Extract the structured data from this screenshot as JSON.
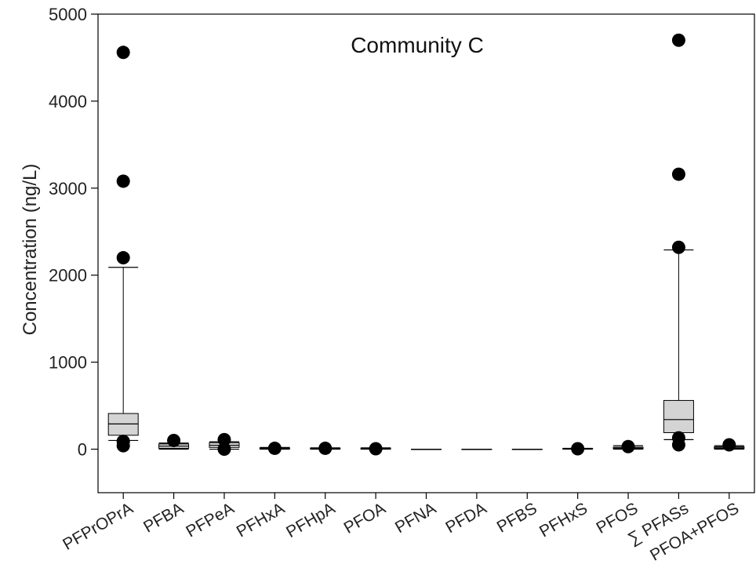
{
  "chart_data": {
    "type": "box",
    "title": "Community C",
    "xlabel": "",
    "ylabel": "Concentration (ng/L)",
    "ylim": [
      -500,
      5000
    ],
    "yticks": [
      0,
      1000,
      2000,
      3000,
      4000,
      5000
    ],
    "grid": false,
    "categories": [
      "PFPrOPrA",
      "PFBA",
      "PFPeA",
      "PFHxA",
      "PFHpA",
      "PFOA",
      "PFNA",
      "PFDA",
      "PFBS",
      "PFHxS",
      "PFOS",
      "∑ PFASs",
      "PFOA+PFOS"
    ],
    "boxes": [
      {
        "whisker_low": 100,
        "q1": 160,
        "median": 290,
        "q3": 410,
        "whisker_high": 2090,
        "outliers": [
          4560,
          3080,
          2200,
          90,
          40
        ]
      },
      {
        "whisker_low": 0,
        "q1": 10,
        "median": 35,
        "q3": 60,
        "whisker_high": 70,
        "outliers": [
          100
        ]
      },
      {
        "whisker_low": 0,
        "q1": 20,
        "median": 45,
        "q3": 75,
        "whisker_high": 85,
        "outliers": [
          110,
          0
        ]
      },
      {
        "whisker_low": 0,
        "q1": 3,
        "median": 8,
        "q3": 15,
        "whisker_high": 20,
        "outliers": [
          10
        ]
      },
      {
        "whisker_low": 0,
        "q1": 3,
        "median": 7,
        "q3": 12,
        "whisker_high": 15,
        "outliers": [
          10
        ]
      },
      {
        "whisker_low": 0,
        "q1": 3,
        "median": 6,
        "q3": 12,
        "whisker_high": 15,
        "outliers": [
          5
        ]
      },
      {
        "whisker_low": 0,
        "q1": 0,
        "median": 0,
        "q3": 0,
        "whisker_high": 0,
        "outliers": []
      },
      {
        "whisker_low": 0,
        "q1": 0,
        "median": 0,
        "q3": 0,
        "whisker_high": 0,
        "outliers": []
      },
      {
        "whisker_low": 0,
        "q1": 0,
        "median": 0,
        "q3": 0,
        "whisker_high": 0,
        "outliers": []
      },
      {
        "whisker_low": 0,
        "q1": 2,
        "median": 5,
        "q3": 8,
        "whisker_high": 10,
        "outliers": [
          5
        ]
      },
      {
        "whisker_low": 0,
        "q1": 5,
        "median": 12,
        "q3": 22,
        "whisker_high": 40,
        "outliers": [
          30
        ]
      },
      {
        "whisker_low": 110,
        "q1": 190,
        "median": 340,
        "q3": 560,
        "whisker_high": 2290,
        "outliers": [
          4700,
          3160,
          2320,
          130,
          50
        ]
      },
      {
        "whisker_low": 0,
        "q1": 5,
        "median": 15,
        "q3": 28,
        "whisker_high": 40,
        "outliers": [
          50
        ]
      }
    ]
  }
}
